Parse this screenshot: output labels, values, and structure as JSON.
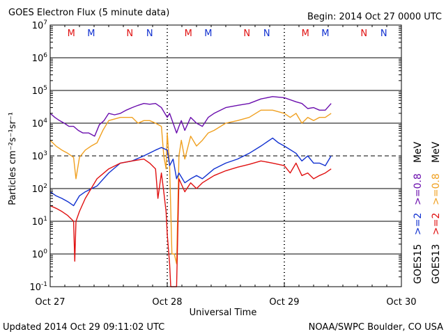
{
  "chart_data": {
    "type": "line",
    "title": "GOES Electron Flux (5 minute data)",
    "begin": "Begin: 2014 Oct 27 0000 UTC",
    "xlabel": "Universal Time",
    "ylabel": "Particles cm⁻²s⁻¹sr⁻¹",
    "x_ticks": [
      "Oct 27",
      "Oct 28",
      "Oct 29",
      "Oct 30"
    ],
    "xlim_days": [
      0,
      3
    ],
    "y_scale": "log",
    "ylim": [
      0.1,
      10000000
    ],
    "y_ticks": [
      {
        "base": "10",
        "exp": "-1"
      },
      {
        "base": "10",
        "exp": "0"
      },
      {
        "base": "10",
        "exp": "1"
      },
      {
        "base": "10",
        "exp": "2"
      },
      {
        "base": "10",
        "exp": "3"
      },
      {
        "base": "10",
        "exp": "4"
      },
      {
        "base": "10",
        "exp": "5"
      },
      {
        "base": "10",
        "exp": "6"
      },
      {
        "base": "10",
        "exp": "7"
      }
    ],
    "threshold": 1000,
    "noon_midnight_markers": [
      {
        "day": 0.18,
        "label": "M",
        "color": "#e01010"
      },
      {
        "day": 0.35,
        "label": "M",
        "color": "#1030d0"
      },
      {
        "day": 0.68,
        "label": "N",
        "color": "#e01010"
      },
      {
        "day": 0.85,
        "label": "N",
        "color": "#1030d0"
      },
      {
        "day": 1.18,
        "label": "M",
        "color": "#e01010"
      },
      {
        "day": 1.35,
        "label": "M",
        "color": "#1030d0"
      },
      {
        "day": 1.68,
        "label": "N",
        "color": "#e01010"
      },
      {
        "day": 1.85,
        "label": "N",
        "color": "#1030d0"
      },
      {
        "day": 2.18,
        "label": "M",
        "color": "#e01010"
      },
      {
        "day": 2.35,
        "label": "M",
        "color": "#1030d0"
      },
      {
        "day": 2.68,
        "label": "N",
        "color": "#e01010"
      },
      {
        "day": 2.85,
        "label": "N",
        "color": "#1030d0"
      }
    ],
    "legend": {
      "col1": [
        {
          "text": "GOES15",
          "color": "#000000"
        },
        {
          "text": ">=2",
          "color": "#1030d0"
        },
        {
          "text": ">=0.8",
          "color": "#6a0dad"
        },
        {
          "text": "MeV",
          "color": "#000000"
        }
      ],
      "col2": [
        {
          "text": "GOES13",
          "color": "#000000"
        },
        {
          "text": ">=2",
          "color": "#e01010"
        },
        {
          "text": ">=0.8",
          "color": "#f0a020"
        },
        {
          "text": "MeV",
          "color": "#000000"
        }
      ]
    },
    "series": [
      {
        "key": "g15_08",
        "color": "#6a0dad",
        "x": [
          0,
          0.04,
          0.08,
          0.12,
          0.16,
          0.2,
          0.24,
          0.28,
          0.33,
          0.38,
          0.42,
          0.46,
          0.5,
          0.55,
          0.6,
          0.65,
          0.7,
          0.75,
          0.8,
          0.85,
          0.9,
          0.95,
          1.0,
          1.02,
          1.05,
          1.08,
          1.1,
          1.12,
          1.15,
          1.2,
          1.25,
          1.3,
          1.35,
          1.4,
          1.5,
          1.6,
          1.7,
          1.8,
          1.9,
          2.0,
          2.1,
          2.15,
          2.2,
          2.25,
          2.3,
          2.35,
          2.4
        ],
        "y": [
          20000,
          15000,
          12000,
          10000,
          8000,
          8000,
          6000,
          5000,
          5000,
          4000,
          9000,
          12000,
          20000,
          18000,
          20000,
          25000,
          30000,
          35000,
          40000,
          38000,
          40000,
          30000,
          15000,
          20000,
          10000,
          5000,
          8000,
          12000,
          6000,
          15000,
          10000,
          8000,
          15000,
          20000,
          30000,
          35000,
          40000,
          55000,
          65000,
          60000,
          45000,
          40000,
          28000,
          30000,
          25000,
          25000,
          40000
        ]
      },
      {
        "key": "g13_08",
        "color": "#f0a020",
        "x": [
          0,
          0.05,
          0.1,
          0.15,
          0.2,
          0.22,
          0.25,
          0.3,
          0.35,
          0.4,
          0.45,
          0.5,
          0.6,
          0.7,
          0.75,
          0.8,
          0.85,
          0.9,
          0.95,
          0.97,
          0.99,
          1.0,
          1.02,
          1.04,
          1.06,
          1.08,
          1.1,
          1.12,
          1.15,
          1.2,
          1.25,
          1.3,
          1.35,
          1.4,
          1.5,
          1.6,
          1.7,
          1.8,
          1.9,
          2.0,
          2.05,
          2.1,
          2.15,
          2.2,
          2.25,
          2.3,
          2.35,
          2.4
        ],
        "y": [
          3000,
          2000,
          1500,
          1200,
          900,
          200,
          900,
          1500,
          2000,
          2500,
          6000,
          12000,
          15000,
          15000,
          10000,
          12000,
          12000,
          10000,
          8000,
          1000,
          400,
          5000,
          500,
          1,
          1,
          0.5,
          1000,
          3000,
          800,
          4000,
          2000,
          3000,
          5000,
          6000,
          10000,
          12000,
          15000,
          25000,
          25000,
          20000,
          15000,
          20000,
          10000,
          15000,
          12000,
          15000,
          15000,
          20000
        ]
      },
      {
        "key": "g15_2",
        "color": "#1030d0",
        "x": [
          0,
          0.05,
          0.1,
          0.15,
          0.2,
          0.25,
          0.3,
          0.4,
          0.5,
          0.6,
          0.7,
          0.8,
          0.9,
          0.95,
          1.0,
          1.02,
          1.05,
          1.08,
          1.1,
          1.15,
          1.2,
          1.25,
          1.3,
          1.4,
          1.5,
          1.6,
          1.7,
          1.8,
          1.9,
          1.95,
          2.0,
          2.1,
          2.15,
          2.2,
          2.25,
          2.3,
          2.35,
          2.4
        ],
        "y": [
          80,
          60,
          50,
          40,
          30,
          60,
          80,
          120,
          300,
          600,
          700,
          1000,
          1500,
          1800,
          1500,
          500,
          800,
          200,
          300,
          150,
          200,
          250,
          200,
          400,
          600,
          800,
          1200,
          2000,
          3500,
          2500,
          2000,
          1200,
          700,
          1000,
          600,
          600,
          500,
          1000
        ]
      },
      {
        "key": "g13_2",
        "color": "#e01010",
        "x": [
          0,
          0.05,
          0.1,
          0.15,
          0.2,
          0.21,
          0.22,
          0.25,
          0.3,
          0.4,
          0.5,
          0.6,
          0.7,
          0.8,
          0.85,
          0.9,
          0.92,
          0.95,
          0.97,
          0.99,
          1.0,
          1.02,
          1.03,
          1.05,
          1.07,
          1.08,
          1.1,
          1.15,
          1.2,
          1.25,
          1.3,
          1.4,
          1.5,
          1.6,
          1.7,
          1.8,
          1.9,
          2.0,
          2.05,
          2.1,
          2.15,
          2.2,
          2.25,
          2.3,
          2.35,
          2.4
        ],
        "y": [
          30,
          25,
          20,
          15,
          10,
          0.6,
          10,
          20,
          50,
          200,
          400,
          600,
          700,
          800,
          600,
          400,
          50,
          300,
          80,
          20,
          4,
          0.5,
          0.1,
          0.1,
          0.1,
          0.1,
          200,
          80,
          150,
          100,
          150,
          250,
          350,
          450,
          550,
          700,
          600,
          500,
          300,
          600,
          250,
          300,
          200,
          250,
          300,
          400
        ]
      }
    ]
  },
  "footer": {
    "updated": "Updated 2014 Oct 29 09:11:02 UTC",
    "source": "NOAA/SWPC Boulder, CO USA"
  }
}
